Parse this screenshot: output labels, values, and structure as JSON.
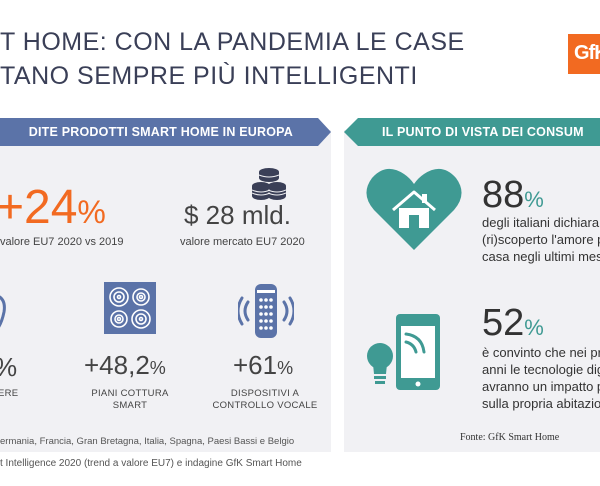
{
  "header": {
    "title_line1": "T HOME: CON LA PANDEMIA LE CASE",
    "title_line2": "TANO SEMPRE PIÙ INTELLIGENTI",
    "logo_text": "GfK",
    "accent_color": "#f26a21",
    "title_color": "#3a3f57"
  },
  "left_panel": {
    "banner": "DITE PRODOTTI SMART HOME IN EUROPA",
    "banner_color": "#5b73a8",
    "growth": {
      "value": "+24",
      "unit": "%",
      "caption": "valore EU7 2020 vs 2019"
    },
    "market": {
      "value": "$ 28 mld.",
      "caption": "valore mercato EU7 2020",
      "icon": "coins-stack-icon"
    },
    "items": [
      {
        "value": "%",
        "unit": "",
        "label_line1": "ERE",
        "label_line2": "",
        "icon": "bulb-icon"
      },
      {
        "value": "+48,2",
        "unit": "%",
        "label_line1": "PIANI COTTURA",
        "label_line2": "SMART",
        "icon": "cooktop-icon"
      },
      {
        "value": "+61",
        "unit": "%",
        "label_line1": "DISPOSITIVI A",
        "label_line2": "CONTROLLO VOCALE",
        "icon": "smart-speaker-icon"
      }
    ],
    "countries_note": "ermania, Francia, Gran Bretagna, Italia, Spagna, Paesi Bassi e Belgio"
  },
  "right_panel": {
    "banner": "IL PUNTO DI VISTA DEI CONSUM",
    "banner_color": "#3f9a93",
    "stats": [
      {
        "value": "88",
        "unit": "%",
        "lines": [
          "degli italiani dichiara d",
          "(ri)scoperto l'amore p",
          "casa negli ultimi mesi"
        ],
        "icon": "heart-house-icon"
      },
      {
        "value": "52",
        "unit": "%",
        "lines": [
          "è convinto che nei pr",
          "anni le tecnologie dig",
          "avranno un impatto p",
          "sulla propria abitazio"
        ],
        "icon": "smartphone-bulb-icon"
      }
    ],
    "source": "Fonte: GfK Smart Home"
  },
  "footer": {
    "source_note": "t Intelligence 2020 (trend a valore EU7) e indagine GfK Smart Home"
  }
}
